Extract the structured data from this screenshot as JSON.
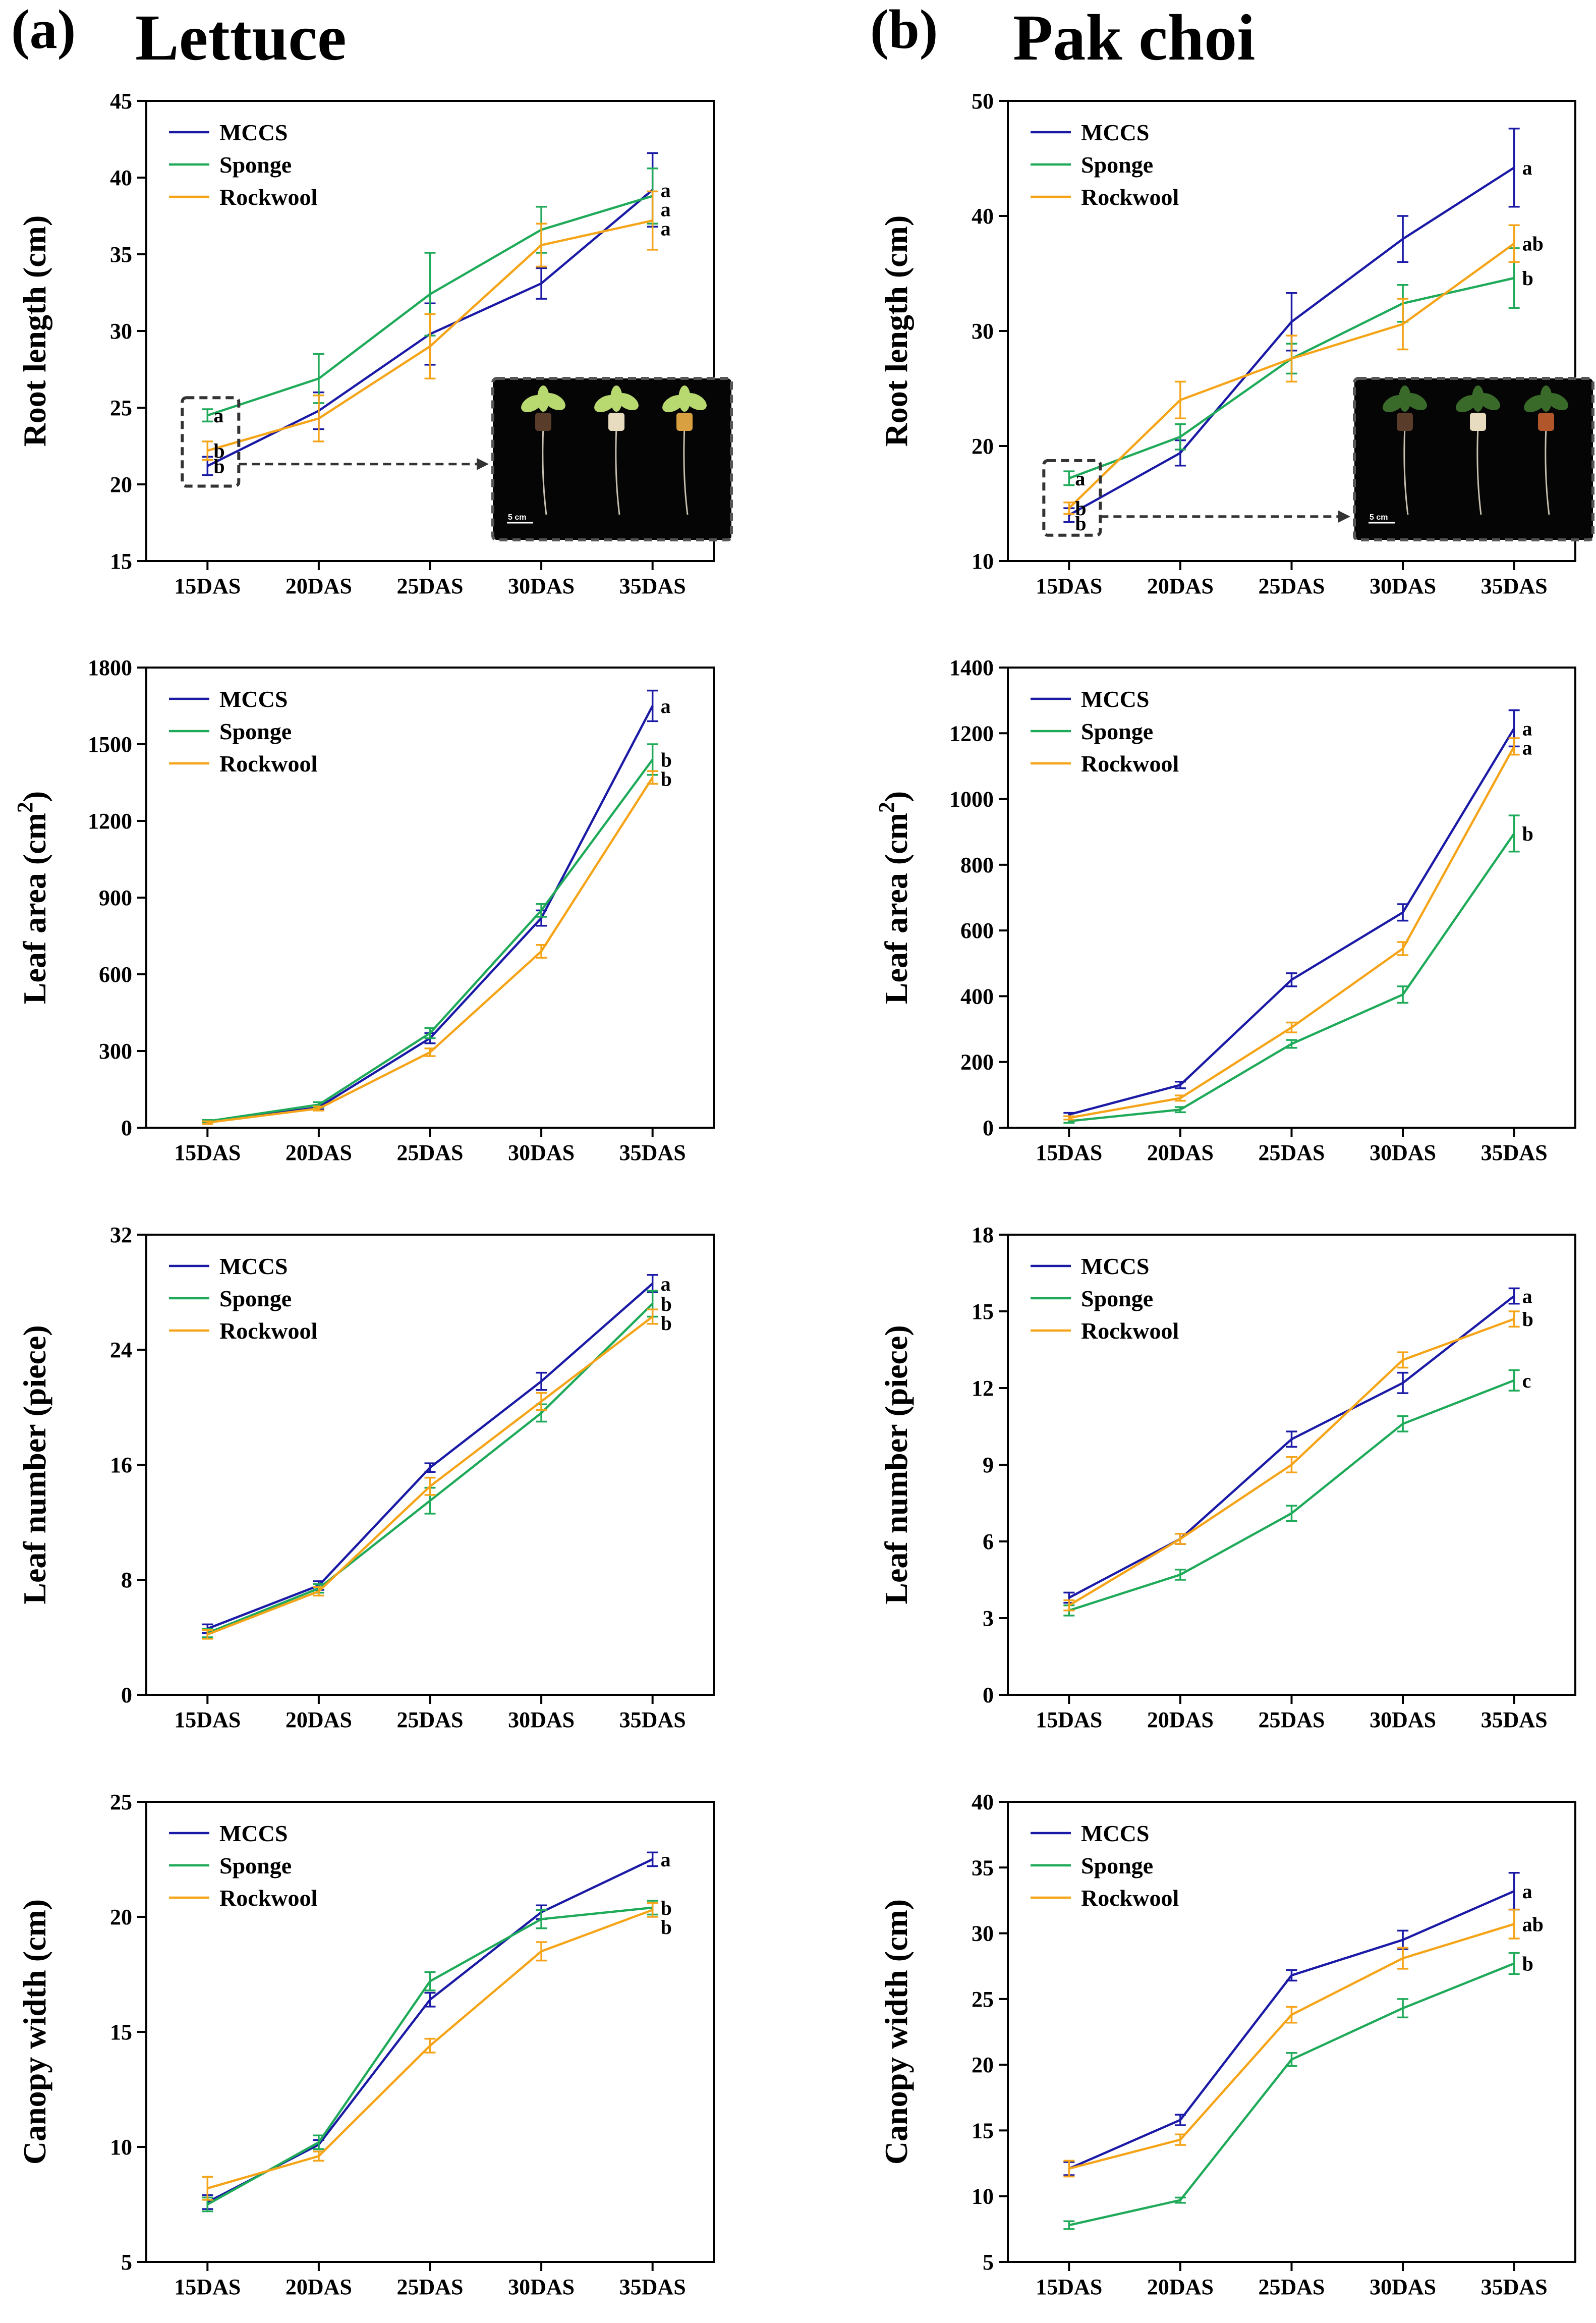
{
  "panels": [
    {
      "label": "(a)",
      "title": "Lettuce"
    },
    {
      "label": "(b)",
      "title": "Pak choi"
    }
  ],
  "colors": {
    "MCCS": "#1a1aa6",
    "Sponge": "#1faa59",
    "Rockwool": "#f5a418"
  },
  "chart_data": [
    {
      "type": "line",
      "panel": "Lettuce",
      "ylabel": "Root length (cm)",
      "ylim": [
        15,
        45
      ],
      "yticks": [
        15,
        20,
        25,
        30,
        35,
        40,
        45
      ],
      "categories": [
        "15DAS",
        "20DAS",
        "25DAS",
        "30DAS",
        "35DAS"
      ],
      "series": [
        {
          "name": "MCCS",
          "values": [
            21.2,
            24.8,
            29.8,
            33.1,
            39.2
          ],
          "errors": [
            0.6,
            1.2,
            2.0,
            1.0,
            2.4
          ]
        },
        {
          "name": "Sponge",
          "values": [
            24.5,
            26.9,
            32.4,
            36.6,
            38.8
          ],
          "errors": [
            0.4,
            1.6,
            2.7,
            1.5,
            1.8
          ]
        },
        {
          "name": "Rockwool",
          "values": [
            22.2,
            24.3,
            29.0,
            35.6,
            37.2
          ],
          "errors": [
            0.6,
            1.5,
            2.1,
            1.4,
            1.9
          ]
        }
      ],
      "sig_labels": [
        "a",
        "a",
        "a"
      ],
      "start_labels": [
        "a",
        "b",
        "b"
      ],
      "inset": {
        "scale_label": "5 cm"
      }
    },
    {
      "type": "line",
      "panel": "Pak choi",
      "ylabel": "Root length (cm)",
      "ylim": [
        10,
        50
      ],
      "yticks": [
        10,
        20,
        30,
        40,
        50
      ],
      "categories": [
        "15DAS",
        "20DAS",
        "25DAS",
        "30DAS",
        "35DAS"
      ],
      "series": [
        {
          "name": "MCCS",
          "values": [
            14.0,
            19.4,
            30.8,
            38.0,
            44.2
          ],
          "errors": [
            0.6,
            1.1,
            2.5,
            2.0,
            3.4
          ]
        },
        {
          "name": "Sponge",
          "values": [
            17.2,
            20.8,
            27.6,
            32.4,
            34.6
          ],
          "errors": [
            0.6,
            1.1,
            1.3,
            1.6,
            2.6
          ]
        },
        {
          "name": "Rockwool",
          "values": [
            14.6,
            24.0,
            27.6,
            30.6,
            37.6
          ],
          "errors": [
            0.5,
            1.6,
            2.0,
            2.2,
            1.6
          ]
        }
      ],
      "sig_labels": [
        "a",
        "b",
        "ab"
      ],
      "start_labels": [
        "a",
        "b",
        "b"
      ],
      "inset": {
        "scale_label": "5 cm"
      }
    },
    {
      "type": "line",
      "panel": "Lettuce",
      "ylabel": "Leaf area (cm²)",
      "ylabel_main": "Leaf area (cm",
      "ylabel_sup": "2",
      "ylabel_end": ")",
      "ylim": [
        0,
        1800
      ],
      "yticks": [
        0,
        300,
        600,
        900,
        1200,
        1500,
        1800
      ],
      "categories": [
        "15DAS",
        "20DAS",
        "25DAS",
        "30DAS",
        "35DAS"
      ],
      "series": [
        {
          "name": "MCCS",
          "values": [
            20,
            80,
            350,
            820,
            1650
          ],
          "errors": [
            5,
            8,
            20,
            30,
            60
          ]
        },
        {
          "name": "Sponge",
          "values": [
            25,
            90,
            370,
            850,
            1440
          ],
          "errors": [
            5,
            10,
            20,
            25,
            60
          ]
        },
        {
          "name": "Rockwool",
          "values": [
            20,
            75,
            295,
            690,
            1370
          ],
          "errors": [
            5,
            8,
            15,
            25,
            25
          ]
        }
      ],
      "sig_labels": [
        "a",
        "b",
        "b"
      ]
    },
    {
      "type": "line",
      "panel": "Pak choi",
      "ylabel": "Leaf area (cm²)",
      "ylabel_main": "Leaf area (cm",
      "ylabel_sup": "2",
      "ylabel_end": ")",
      "ylim": [
        0,
        1400
      ],
      "yticks": [
        0,
        200,
        400,
        600,
        800,
        1000,
        1200,
        1400
      ],
      "categories": [
        "15DAS",
        "20DAS",
        "25DAS",
        "30DAS",
        "35DAS"
      ],
      "series": [
        {
          "name": "MCCS",
          "values": [
            40,
            130,
            450,
            655,
            1215
          ],
          "errors": [
            5,
            10,
            20,
            25,
            55
          ]
        },
        {
          "name": "Sponge",
          "values": [
            20,
            55,
            255,
            405,
            895
          ],
          "errors": [
            5,
            8,
            12,
            25,
            55
          ]
        },
        {
          "name": "Rockwool",
          "values": [
            30,
            90,
            305,
            545,
            1160
          ],
          "errors": [
            5,
            8,
            15,
            20,
            25
          ]
        }
      ],
      "sig_labels": [
        "a",
        "b",
        "a"
      ]
    },
    {
      "type": "line",
      "panel": "Lettuce",
      "ylabel": "Leaf number (piece)",
      "ylim": [
        0,
        32
      ],
      "yticks": [
        0,
        8,
        16,
        24,
        32
      ],
      "categories": [
        "15DAS",
        "20DAS",
        "25DAS",
        "30DAS",
        "35DAS"
      ],
      "series": [
        {
          "name": "MCCS",
          "values": [
            4.6,
            7.6,
            15.8,
            21.8,
            28.6
          ],
          "errors": [
            0.3,
            0.3,
            0.3,
            0.6,
            0.6
          ]
        },
        {
          "name": "Sponge",
          "values": [
            4.3,
            7.4,
            13.5,
            19.6,
            27.2
          ],
          "errors": [
            0.3,
            0.3,
            0.9,
            0.6,
            0.9
          ]
        },
        {
          "name": "Rockwool",
          "values": [
            4.2,
            7.2,
            14.5,
            20.4,
            26.3
          ],
          "errors": [
            0.3,
            0.3,
            0.6,
            0.6,
            0.5
          ]
        }
      ],
      "sig_labels": [
        "a",
        "b",
        "b"
      ]
    },
    {
      "type": "line",
      "panel": "Pak choi",
      "ylabel": "Leaf number (piece)",
      "ylim": [
        0,
        18
      ],
      "yticks": [
        0,
        3,
        6,
        9,
        12,
        15,
        18
      ],
      "categories": [
        "15DAS",
        "20DAS",
        "25DAS",
        "30DAS",
        "35DAS"
      ],
      "series": [
        {
          "name": "MCCS",
          "values": [
            3.8,
            6.1,
            10.0,
            12.2,
            15.6
          ],
          "errors": [
            0.2,
            0.2,
            0.3,
            0.4,
            0.3
          ]
        },
        {
          "name": "Sponge",
          "values": [
            3.3,
            4.7,
            7.1,
            10.6,
            12.3
          ],
          "errors": [
            0.2,
            0.2,
            0.3,
            0.3,
            0.4
          ]
        },
        {
          "name": "Rockwool",
          "values": [
            3.5,
            6.1,
            9.0,
            13.1,
            14.7
          ],
          "errors": [
            0.2,
            0.2,
            0.3,
            0.3,
            0.3
          ]
        }
      ],
      "sig_labels": [
        "a",
        "c",
        "b"
      ]
    },
    {
      "type": "line",
      "panel": "Lettuce",
      "ylabel": "Canopy width (cm)",
      "ylim": [
        5,
        25
      ],
      "yticks": [
        5,
        10,
        15,
        20,
        25
      ],
      "categories": [
        "15DAS",
        "20DAS",
        "25DAS",
        "30DAS",
        "35DAS"
      ],
      "series": [
        {
          "name": "MCCS",
          "values": [
            7.6,
            10.1,
            16.4,
            20.2,
            22.5
          ],
          "errors": [
            0.3,
            0.2,
            0.3,
            0.3,
            0.3
          ]
        },
        {
          "name": "Sponge",
          "values": [
            7.5,
            10.2,
            17.2,
            19.9,
            20.4
          ],
          "errors": [
            0.3,
            0.3,
            0.4,
            0.4,
            0.3
          ]
        },
        {
          "name": "Rockwool",
          "values": [
            8.2,
            9.6,
            14.4,
            18.5,
            20.3
          ],
          "errors": [
            0.5,
            0.2,
            0.3,
            0.4,
            0.3
          ]
        }
      ],
      "sig_labels": [
        "a",
        "b",
        "b"
      ]
    },
    {
      "type": "line",
      "panel": "Pak choi",
      "ylabel": "Canopy width (cm)",
      "ylim": [
        5,
        40
      ],
      "yticks": [
        5,
        10,
        15,
        20,
        25,
        30,
        35,
        40
      ],
      "categories": [
        "15DAS",
        "20DAS",
        "25DAS",
        "30DAS",
        "35DAS"
      ],
      "series": [
        {
          "name": "MCCS",
          "values": [
            12.1,
            15.8,
            26.8,
            29.5,
            33.2
          ],
          "errors": [
            0.5,
            0.4,
            0.4,
            0.7,
            1.4
          ]
        },
        {
          "name": "Sponge",
          "values": [
            7.8,
            9.7,
            20.4,
            24.3,
            27.7
          ],
          "errors": [
            0.3,
            0.2,
            0.5,
            0.7,
            0.8
          ]
        },
        {
          "name": "Rockwool",
          "values": [
            12.1,
            14.3,
            23.8,
            28.1,
            30.7
          ],
          "errors": [
            0.6,
            0.4,
            0.6,
            0.8,
            1.1
          ]
        }
      ],
      "sig_labels": [
        "a",
        "b",
        "ab"
      ]
    }
  ]
}
